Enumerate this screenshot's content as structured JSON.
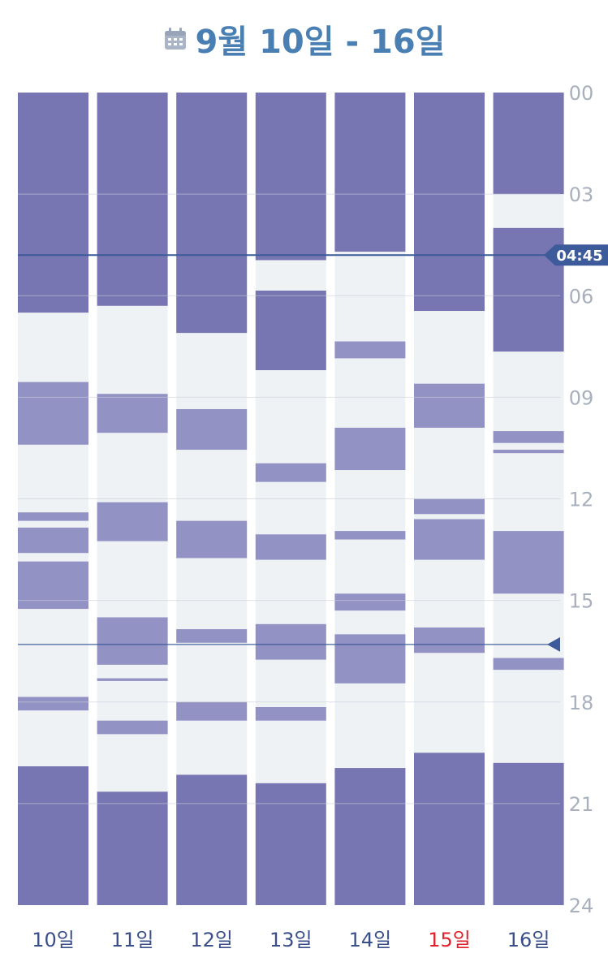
{
  "header": {
    "title": "9월 10일 - 16일",
    "icon": "calendar-icon"
  },
  "colors": {
    "sleep": "#7776b3",
    "nap": "#9392c4",
    "awake": "#eff2f5",
    "now_line": "#3d5a9a",
    "now_badge": "#3d5a9a",
    "marker": "#3d5a9a",
    "tick_label": "#a9b0bd",
    "day_label": "#3a4f8a",
    "day_label_highlight": "#e0212b",
    "grid": "#c8ced8"
  },
  "chart_data": {
    "type": "timeline",
    "title": "9월 10일 - 16일",
    "y_range_hours": [
      0,
      24
    ],
    "y_ticks": [
      "00",
      "03",
      "06",
      "09",
      "12",
      "15",
      "18",
      "21",
      "24"
    ],
    "current_time_label": "04:45",
    "current_time_hours": 4.8,
    "marker_time_hours": 16.3,
    "days": [
      {
        "label": "10일",
        "highlight": false,
        "segments": [
          {
            "start": 0,
            "end": 6.5,
            "kind": "sleep"
          },
          {
            "start": 8.55,
            "end": 10.4,
            "kind": "nap"
          },
          {
            "start": 12.4,
            "end": 12.65,
            "kind": "nap"
          },
          {
            "start": 12.85,
            "end": 13.6,
            "kind": "nap"
          },
          {
            "start": 13.85,
            "end": 15.25,
            "kind": "nap"
          },
          {
            "start": 17.85,
            "end": 18.25,
            "kind": "nap"
          },
          {
            "start": 19.9,
            "end": 24,
            "kind": "sleep"
          }
        ]
      },
      {
        "label": "11일",
        "highlight": false,
        "segments": [
          {
            "start": 0,
            "end": 6.3,
            "kind": "sleep"
          },
          {
            "start": 8.9,
            "end": 10.05,
            "kind": "nap"
          },
          {
            "start": 12.1,
            "end": 13.25,
            "kind": "nap"
          },
          {
            "start": 15.5,
            "end": 16.9,
            "kind": "nap"
          },
          {
            "start": 17.3,
            "end": 17.38,
            "kind": "nap"
          },
          {
            "start": 18.55,
            "end": 18.95,
            "kind": "nap"
          },
          {
            "start": 20.65,
            "end": 24,
            "kind": "sleep"
          }
        ]
      },
      {
        "label": "12일",
        "highlight": false,
        "segments": [
          {
            "start": 0,
            "end": 7.1,
            "kind": "sleep"
          },
          {
            "start": 9.35,
            "end": 10.55,
            "kind": "nap"
          },
          {
            "start": 12.65,
            "end": 13.75,
            "kind": "nap"
          },
          {
            "start": 15.85,
            "end": 16.25,
            "kind": "nap"
          },
          {
            "start": 18.0,
            "end": 18.55,
            "kind": "nap"
          },
          {
            "start": 20.15,
            "end": 24,
            "kind": "sleep"
          }
        ]
      },
      {
        "label": "13일",
        "highlight": false,
        "segments": [
          {
            "start": 0,
            "end": 4.95,
            "kind": "sleep"
          },
          {
            "start": 5.85,
            "end": 8.2,
            "kind": "sleep"
          },
          {
            "start": 10.95,
            "end": 11.5,
            "kind": "nap"
          },
          {
            "start": 13.05,
            "end": 13.8,
            "kind": "nap"
          },
          {
            "start": 15.7,
            "end": 16.75,
            "kind": "nap"
          },
          {
            "start": 18.15,
            "end": 18.55,
            "kind": "nap"
          },
          {
            "start": 20.4,
            "end": 24,
            "kind": "sleep"
          }
        ]
      },
      {
        "label": "14일",
        "highlight": false,
        "segments": [
          {
            "start": 0,
            "end": 4.7,
            "kind": "sleep"
          },
          {
            "start": 7.35,
            "end": 7.85,
            "kind": "nap"
          },
          {
            "start": 9.9,
            "end": 11.15,
            "kind": "nap"
          },
          {
            "start": 12.95,
            "end": 13.2,
            "kind": "nap"
          },
          {
            "start": 14.8,
            "end": 15.3,
            "kind": "nap"
          },
          {
            "start": 16.0,
            "end": 17.45,
            "kind": "nap"
          },
          {
            "start": 19.95,
            "end": 24,
            "kind": "sleep"
          }
        ]
      },
      {
        "label": "15일",
        "highlight": true,
        "segments": [
          {
            "start": 0,
            "end": 6.45,
            "kind": "sleep"
          },
          {
            "start": 8.6,
            "end": 9.9,
            "kind": "nap"
          },
          {
            "start": 12.0,
            "end": 12.45,
            "kind": "nap"
          },
          {
            "start": 12.6,
            "end": 13.8,
            "kind": "nap"
          },
          {
            "start": 15.8,
            "end": 16.55,
            "kind": "nap"
          },
          {
            "start": 19.5,
            "end": 24,
            "kind": "sleep"
          }
        ]
      },
      {
        "label": "16일",
        "highlight": false,
        "segments": [
          {
            "start": 0,
            "end": 3.0,
            "kind": "sleep"
          },
          {
            "start": 4.0,
            "end": 7.65,
            "kind": "sleep"
          },
          {
            "start": 10.0,
            "end": 10.35,
            "kind": "nap"
          },
          {
            "start": 10.55,
            "end": 10.65,
            "kind": "nap"
          },
          {
            "start": 12.95,
            "end": 14.8,
            "kind": "nap"
          },
          {
            "start": 16.7,
            "end": 17.05,
            "kind": "nap"
          },
          {
            "start": 19.8,
            "end": 24,
            "kind": "sleep"
          }
        ]
      }
    ]
  }
}
